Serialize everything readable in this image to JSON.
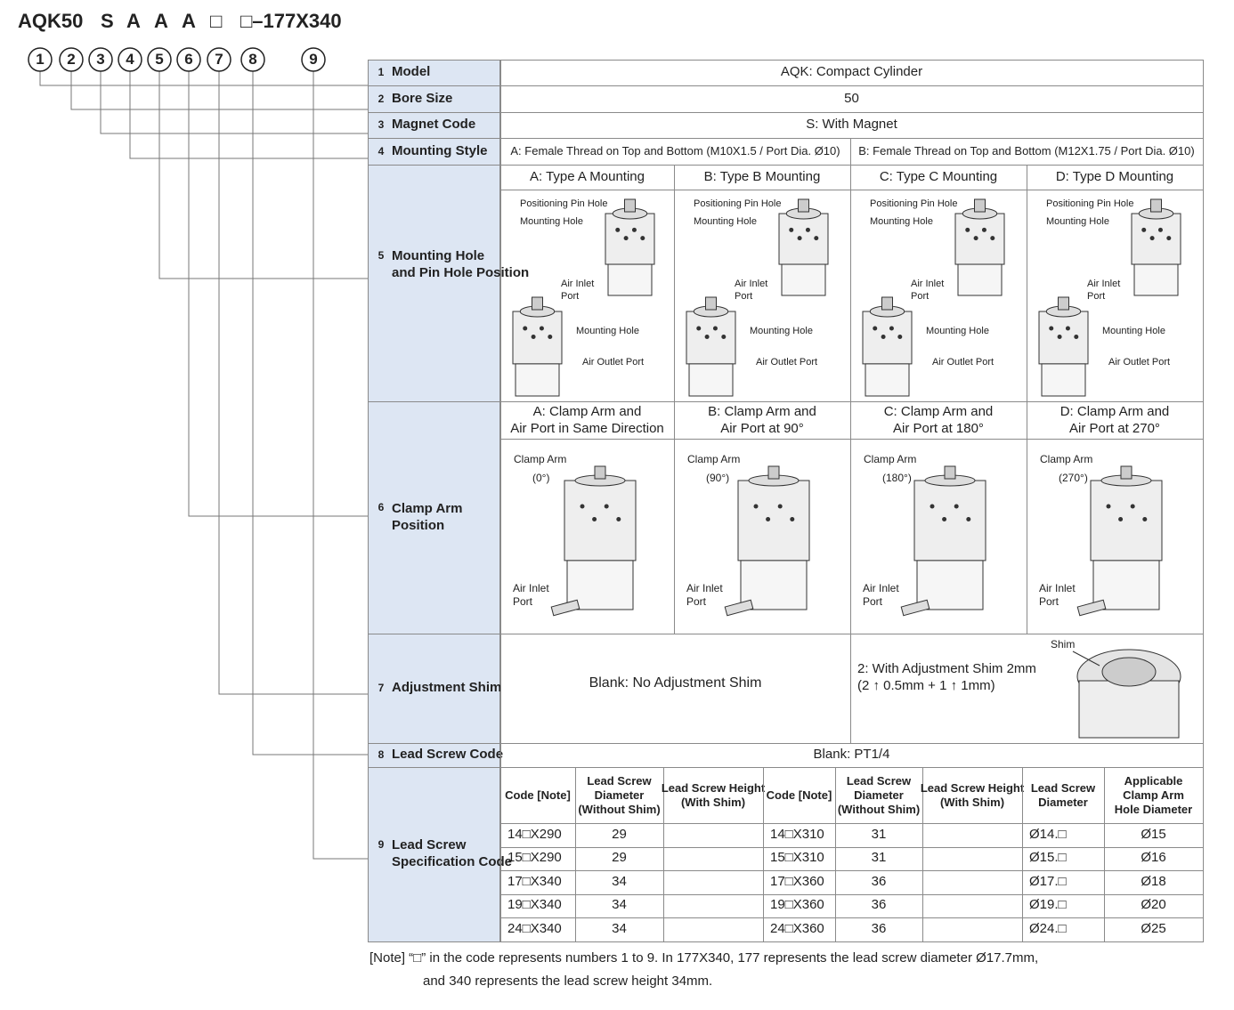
{
  "header": {
    "code_parts": [
      "AQK50",
      "S",
      "A",
      "A",
      "A",
      "□",
      "□–177X340"
    ],
    "position_numbers": [
      "1",
      "2",
      "3",
      "4",
      "5",
      "6",
      "7",
      "8",
      "9"
    ]
  },
  "model": {
    "number": "1",
    "label": "Model",
    "content": "AQK:  Compact Cylinder"
  },
  "bore_size": {
    "number": "2",
    "label": "Bore Size",
    "content": "50"
  },
  "magnet_code": {
    "number": "3",
    "label": "Magnet Code",
    "content": "S:  With Magnet"
  },
  "mounting_style": {
    "number": "4",
    "label": "Mounting Style",
    "options": [
      "A:  Female Thread on Top and Bottom (M10X1.5 / Port Dia. Ø10)",
      "B:  Female Thread on Top and Bottom (M12X1.75 / Port Dia. Ø10)"
    ]
  },
  "mounting_hole": {
    "number": "5",
    "label": [
      "Mounting Hole",
      "and Pin Hole Position"
    ],
    "options": [
      {
        "title": "A:  Type A Mounting",
        "pin_hole": "Positioning Pin Hole",
        "mounting_hole_top": "Mounting Hole",
        "air_inlet": [
          "Air Inlet",
          "Port"
        ],
        "mounting_hole_bottom": "Mounting Hole",
        "air_outlet": "Air Outlet Port"
      },
      {
        "title": "B:  Type B Mounting",
        "pin_hole": "Positioning Pin Hole",
        "mounting_hole_top": "Mounting Hole",
        "air_inlet": [
          "Air Inlet",
          "Port"
        ],
        "mounting_hole_bottom": "Mounting Hole",
        "air_outlet": "Air Outlet Port"
      },
      {
        "title": "C:  Type C Mounting",
        "pin_hole": "Positioning Pin Hole",
        "mounting_hole_top": "Mounting Hole",
        "air_inlet": [
          "Air Inlet",
          "Port"
        ],
        "mounting_hole_bottom": "Mounting Hole",
        "air_outlet": "Air Outlet Port"
      },
      {
        "title": "D:  Type D Mounting",
        "pin_hole": "Positioning Pin Hole",
        "mounting_hole_top": "Mounting Hole",
        "air_inlet": [
          "Air Inlet",
          "Port"
        ],
        "mounting_hole_bottom": "Mounting Hole",
        "air_outlet": "Air Outlet Port"
      }
    ]
  },
  "clamp_arm_position": {
    "number": "6",
    "label": [
      "Clamp Arm",
      "Position"
    ],
    "options": [
      {
        "title": [
          "A:  Clamp Arm and",
          "Air Port in Same Direction"
        ],
        "clamp_arm": "Clamp Arm",
        "angle": "(0°)",
        "air_inlet": [
          "Air Inlet",
          "Port"
        ]
      },
      {
        "title": [
          "B:  Clamp Arm and",
          "Air Port at 90°"
        ],
        "clamp_arm": "Clamp Arm",
        "angle": "(90°)",
        "air_inlet": [
          "Air Inlet",
          "Port"
        ]
      },
      {
        "title": [
          "C:  Clamp Arm and",
          "Air Port at 180°"
        ],
        "clamp_arm": "Clamp Arm",
        "angle": "(180°)",
        "air_inlet": [
          "Air Inlet",
          "Port"
        ]
      },
      {
        "title": [
          "D:  Clamp Arm and",
          "Air Port at 270°"
        ],
        "clamp_arm": "Clamp Arm",
        "angle": "(270°)",
        "air_inlet": [
          "Air Inlet",
          "Port"
        ]
      }
    ]
  },
  "adjustment_shim": {
    "number": "7",
    "label": "Adjustment Shim",
    "blank": "Blank:  No Adjustment Shim",
    "option": [
      "2:  With Adjustment Shim 2mm",
      "(2 ↑ 0.5mm + 1 ↑ 1mm)"
    ],
    "shim_label": "Shim"
  },
  "lead_screw_code": {
    "number": "8",
    "label": "Lead Screw Code",
    "content": "Blank: PT1/4"
  },
  "lead_screw_spec": {
    "number": "9",
    "label": [
      "Lead Screw",
      "Specification Code"
    ],
    "headers": [
      [
        "Code [Note]"
      ],
      [
        "Lead Screw",
        "Diameter",
        "(Without Shim)"
      ],
      [
        "Lead Screw Height",
        "(With Shim)"
      ],
      [
        "Code [Note]"
      ],
      [
        "Lead Screw",
        "Diameter",
        "(Without Shim)"
      ],
      [
        "Lead Screw Height",
        "(With Shim)"
      ],
      [
        "Lead Screw",
        "Diameter"
      ],
      [
        "Applicable",
        "Clamp Arm",
        "Hole Diameter"
      ]
    ],
    "rows": [
      [
        "14□X290",
        29,
        null,
        "14□X310",
        31,
        null,
        "Ø14.□",
        "Ø15"
      ],
      [
        "15□X290",
        29,
        null,
        "15□X310",
        31,
        null,
        "Ø15.□",
        "Ø16"
      ],
      [
        "17□X340",
        34,
        null,
        "17□X360",
        36,
        null,
        "Ø17.□",
        "Ø18"
      ],
      [
        "19□X340",
        34,
        null,
        "19□X360",
        36,
        null,
        "Ø19.□",
        "Ø20"
      ],
      [
        "24□X340",
        34,
        null,
        "24□X360",
        36,
        null,
        "Ø24.□",
        "Ø25"
      ]
    ]
  },
  "note": [
    "[Note] “□” in the code represents numbers 1 to 9.  In 177X340, 177 represents the lead screw diameter Ø17.7mm,",
    "and 340 represents the lead screw height 34mm."
  ]
}
